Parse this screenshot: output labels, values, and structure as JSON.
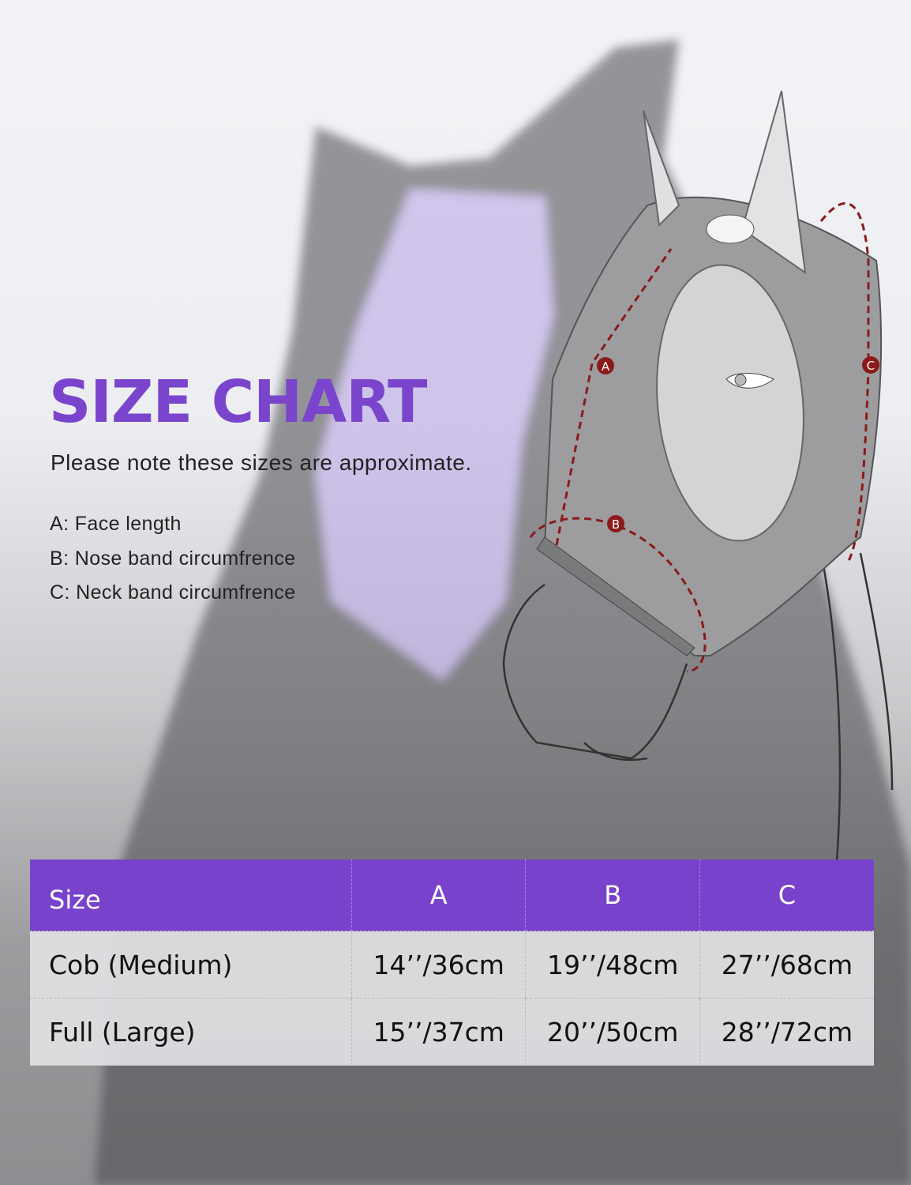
{
  "title": "SIZE CHART",
  "note": "Please note these sizes are approximate.",
  "legend": [
    "A: Face length",
    "B: Nose band circumfrence",
    "C: Neck band circumfrence"
  ],
  "diagram_labels": {
    "a": "A",
    "b": "B",
    "c": "C"
  },
  "table": {
    "headers": [
      "Size",
      "A",
      "B",
      "C"
    ],
    "rows": [
      [
        "Cob (Medium)",
        "14’’/36cm",
        "19’’/48cm",
        "27’’/68cm"
      ],
      [
        "Full (Large)",
        "15’’/37cm",
        "20’’/50cm",
        "28’’/72cm"
      ]
    ]
  },
  "colors": {
    "accent": "#7842cc",
    "title": "#7a45cc",
    "marker": "#8b1a1a"
  }
}
